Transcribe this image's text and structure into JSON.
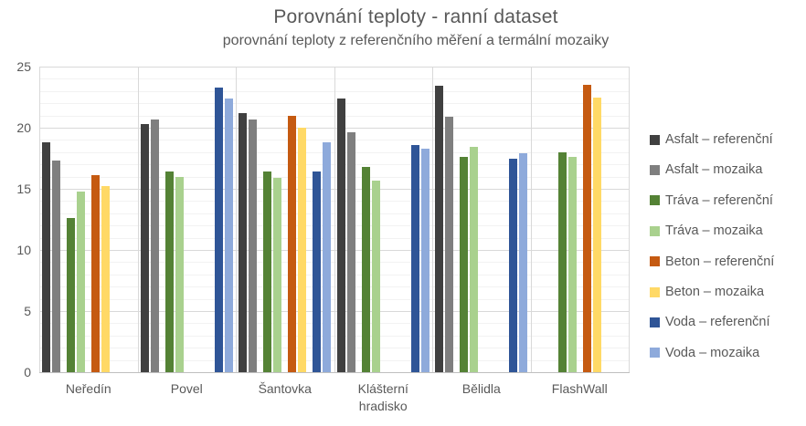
{
  "chart_data": {
    "type": "bar",
    "title": "Porovnání teploty - ranní dataset",
    "subtitle": "porovnání teploty z referenčního měření a termální mozaiky",
    "categories": [
      "Neředín",
      "Povel",
      "Šantovka",
      "Klášterní hradisko",
      "Bělidla",
      "FlashWall"
    ],
    "series": [
      {
        "name": "Asfalt – referenční",
        "color": "#404040",
        "values": [
          18.8,
          20.3,
          21.2,
          22.4,
          23.4,
          null
        ]
      },
      {
        "name": "Asfalt – mozaika",
        "color": "#7f7f7f",
        "values": [
          17.3,
          20.7,
          20.7,
          19.6,
          20.9,
          null
        ]
      },
      {
        "name": "Tráva – referenční",
        "color": "#548235",
        "values": [
          12.6,
          16.4,
          16.4,
          16.8,
          17.6,
          18.0
        ]
      },
      {
        "name": "Tráva – mozaika",
        "color": "#a9d18e",
        "values": [
          14.8,
          16.0,
          15.9,
          15.7,
          18.4,
          17.6
        ]
      },
      {
        "name": "Beton – referenční",
        "color": "#c55a11",
        "values": [
          16.1,
          null,
          21.0,
          null,
          null,
          23.5
        ]
      },
      {
        "name": "Beton – mozaika",
        "color": "#ffd966",
        "values": [
          15.2,
          null,
          20.0,
          null,
          null,
          22.5
        ]
      },
      {
        "name": "Voda – referenční",
        "color": "#2f5597",
        "values": [
          null,
          23.3,
          16.4,
          18.6,
          17.5,
          null
        ]
      },
      {
        "name": "Voda – mozaika",
        "color": "#8eaadb",
        "values": [
          null,
          22.4,
          18.8,
          18.3,
          17.9,
          null
        ]
      }
    ],
    "y_axis": {
      "min": 0,
      "max": 25,
      "major_step": 5,
      "minor_step": 1,
      "tick_labels": [
        "0",
        "5",
        "10",
        "15",
        "20",
        "25"
      ]
    },
    "legend_position": "right",
    "grid": {
      "major_color": "#d9d9d9",
      "minor_color": "#f2f2f2",
      "axis_line_color": "#bfbfbf"
    },
    "text_color": "#595959"
  }
}
